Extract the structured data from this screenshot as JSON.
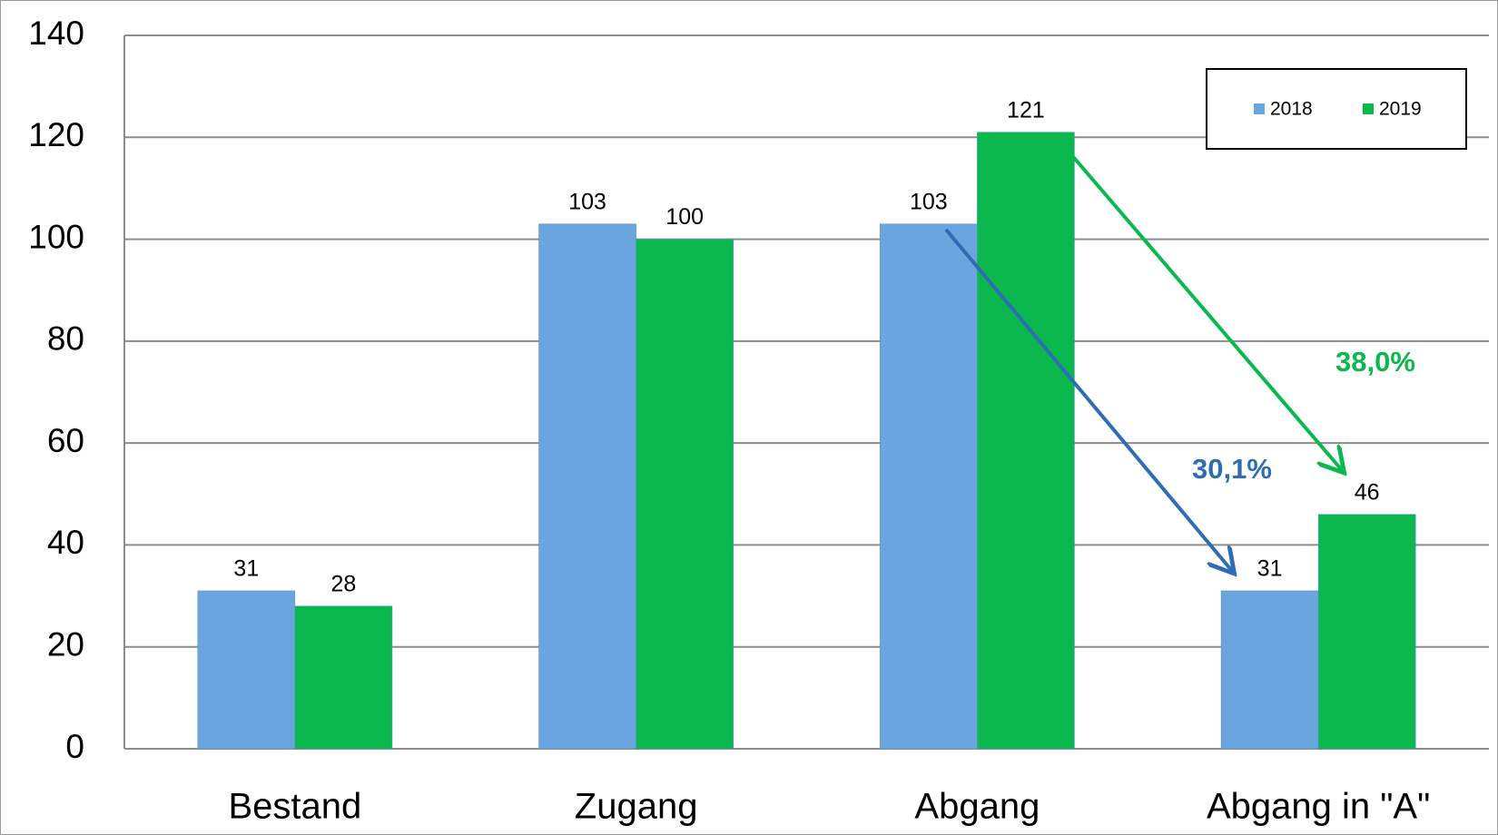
{
  "chart_data": {
    "type": "bar",
    "categories": [
      "Bestand",
      "Zugang",
      "Abgang",
      "Abgang in \"A\""
    ],
    "series": [
      {
        "name": "2018",
        "color": "#6aa5e0",
        "values": [
          31,
          103,
          103,
          31
        ]
      },
      {
        "name": "2019",
        "color": "#0ab84e",
        "values": [
          28,
          100,
          121,
          46
        ]
      }
    ],
    "ylim": [
      0,
      140
    ],
    "yticks": [
      0,
      20,
      40,
      60,
      80,
      100,
      120,
      140
    ],
    "grid": true,
    "legend": "top-right",
    "annotations": [
      {
        "text": "30,1%",
        "color": "#2e6db4"
      },
      {
        "text": "38,0%",
        "color": "#0ab84e"
      }
    ]
  }
}
